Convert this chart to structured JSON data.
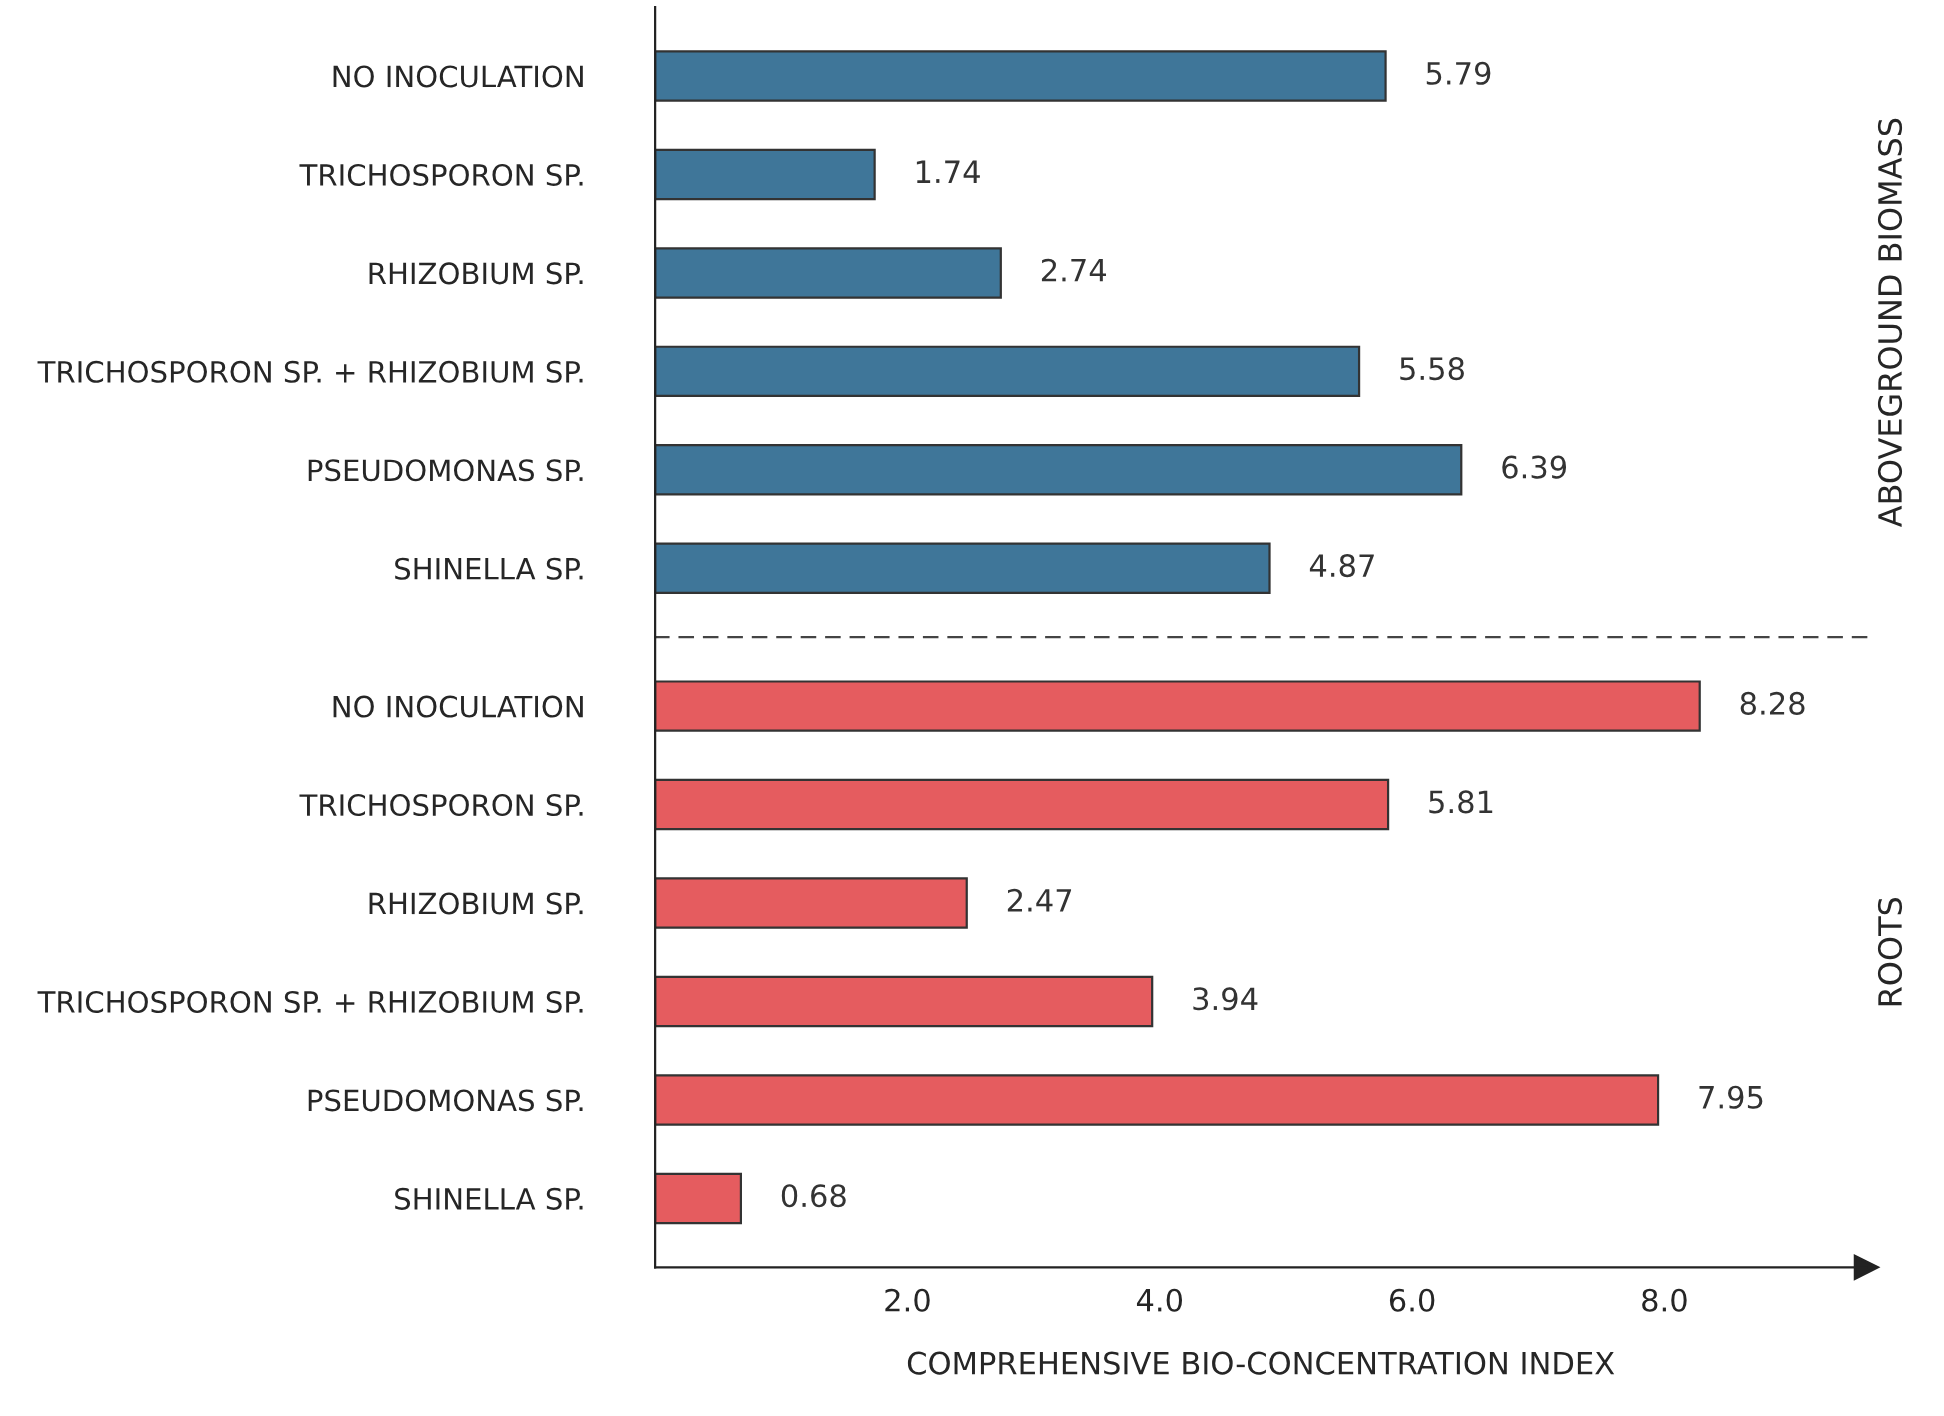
{
  "chart_data": [
    {
      "type": "bar",
      "orientation": "horizontal",
      "ylabel": "ABOVEGROUND BIOMASS",
      "categories": [
        "NO INOCULATION",
        "TRICHOSPORON SP.",
        "RHIZOBIUM SP.",
        "TRICHOSPORON SP. + RHIZOBIUM SP.",
        "PSEUDOMONAS SP.",
        "SHINELLA SP."
      ],
      "values": [
        5.79,
        1.74,
        2.74,
        5.58,
        6.39,
        4.87
      ],
      "color": "#3f7699",
      "xlim": [
        0,
        9.6
      ],
      "tick_labels": "y",
      "data_labels": true,
      "grid": false,
      "legend": false
    },
    {
      "type": "bar",
      "orientation": "horizontal",
      "ylabel": "ROOTS",
      "xlabel": "COMPREHENSIVE BIO-CONCENTRATION INDEX",
      "categories": [
        "NO INOCULATION",
        "TRICHOSPORON SP.",
        "RHIZOBIUM SP.",
        "TRICHOSPORON SP. + RHIZOBIUM SP.",
        "PSEUDOMONAS SP.",
        "SHINELLA SP."
      ],
      "values": [
        8.28,
        5.81,
        2.47,
        3.94,
        7.95,
        0.68
      ],
      "color": "#e55c5f",
      "xlim": [
        0,
        9.6
      ],
      "xticks": [
        {
          "value": 2,
          "label": "2.0"
        },
        {
          "value": 4,
          "label": "4.0"
        },
        {
          "value": 6,
          "label": "6.0"
        },
        {
          "value": 8,
          "label": "8.0"
        }
      ],
      "data_labels": true,
      "grid": false,
      "legend": false
    }
  ]
}
